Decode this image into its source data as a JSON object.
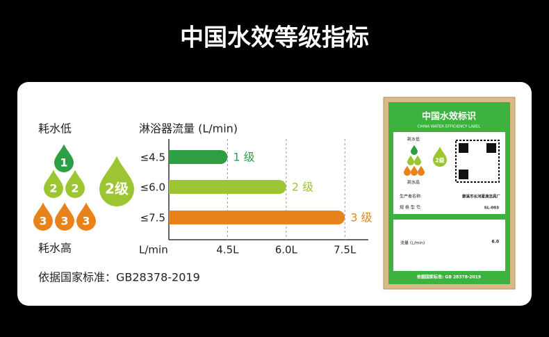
{
  "title": "中国水效等级指标",
  "legend": {
    "low": "耗水低",
    "high": "耗水高",
    "drops": [
      "1",
      "2",
      "2",
      "3",
      "3",
      "3"
    ],
    "badge": "2级"
  },
  "chart_data": {
    "type": "bar",
    "orientation": "horizontal",
    "title": "淋浴器流量 (L/min)",
    "x_label": "L/min",
    "categories": [
      "≤4.5",
      "≤6.0",
      "≤7.5"
    ],
    "values": [
      4.5,
      6.0,
      7.5
    ],
    "grades": [
      "1 级",
      "2 级",
      "3 级"
    ],
    "colors": [
      "#2e9e44",
      "#9cc531",
      "#e8831c"
    ],
    "xlim": [
      3,
      8.1
    ],
    "xticks": [
      {
        "value": 4.5,
        "label": "4.5L"
      },
      {
        "value": 6.0,
        "label": "6.0L"
      },
      {
        "value": 7.5,
        "label": "7.5L"
      }
    ],
    "grid": true
  },
  "footer": "依据国家标准：GB28378-2019",
  "label_card": {
    "title": "中国水效标识",
    "subtitle": "CHINA WATER EFFICIENCY LABEL",
    "low": "耗水低",
    "high": "耗水高",
    "grade": "2级",
    "maker_label": "生产者名称:",
    "maker": "慈溪市长河星滴洁具厂",
    "model_label": "规 格 型 号:",
    "model": "SL-003",
    "flow_label": "流量 (L/min)",
    "flow": "6.0",
    "standard": "依据国家标准: GB 28378-2019"
  }
}
